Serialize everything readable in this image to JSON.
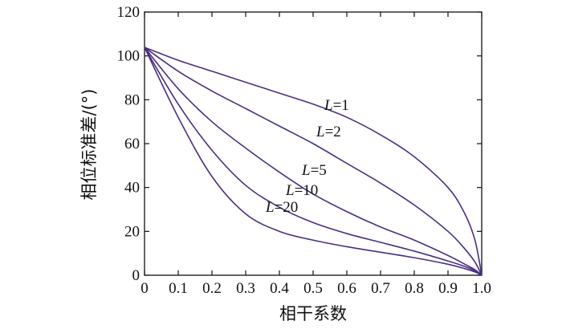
{
  "chart_data": {
    "type": "line",
    "xlabel": "相干系数",
    "ylabel": "相位标准差/(°)",
    "xlim": [
      0,
      1.0
    ],
    "ylim": [
      0,
      120
    ],
    "x_ticks": [
      "0",
      "0.1",
      "0.2",
      "0.3",
      "0.4",
      "0.5",
      "0.6",
      "0.7",
      "0.8",
      "0.9",
      "1.0"
    ],
    "y_ticks": [
      "0",
      "20",
      "40",
      "60",
      "80",
      "100",
      "120"
    ],
    "grid": false,
    "series": [
      {
        "name": "L=1",
        "label_prefix": "L",
        "label_value": "=1",
        "color": "#4b2e83",
        "x": [
          0.0,
          0.1,
          0.2,
          0.3,
          0.4,
          0.5,
          0.6,
          0.7,
          0.8,
          0.9,
          0.95,
          0.98,
          1.0
        ],
        "y": [
          103.9,
          98,
          93,
          88,
          83,
          78,
          72,
          64,
          54,
          40,
          28,
          16,
          0
        ]
      },
      {
        "name": "L=2",
        "label_prefix": "L",
        "label_value": "=2",
        "color": "#4b2e83",
        "x": [
          0.0,
          0.1,
          0.2,
          0.3,
          0.4,
          0.5,
          0.6,
          0.7,
          0.8,
          0.9,
          0.95,
          0.98,
          1.0
        ],
        "y": [
          103.9,
          93,
          84,
          76,
          68,
          60,
          51,
          42,
          32,
          20,
          12,
          6,
          0
        ]
      },
      {
        "name": "L=5",
        "label_prefix": "L",
        "label_value": "=5",
        "color": "#4b2e83",
        "x": [
          0.0,
          0.1,
          0.2,
          0.3,
          0.4,
          0.5,
          0.6,
          0.7,
          0.8,
          0.9,
          0.95,
          0.98,
          1.0
        ],
        "y": [
          103.9,
          85,
          70,
          58,
          47,
          37,
          29,
          22,
          16,
          9,
          5,
          2.5,
          0
        ]
      },
      {
        "name": "L=10",
        "label_prefix": "L",
        "label_value": "=10",
        "color": "#4b2e83",
        "x": [
          0.0,
          0.1,
          0.2,
          0.3,
          0.4,
          0.5,
          0.6,
          0.7,
          0.8,
          0.9,
          0.95,
          0.98,
          1.0
        ],
        "y": [
          103.9,
          78,
          57,
          41,
          31,
          24,
          19,
          15,
          11,
          6.5,
          4,
          2,
          0
        ]
      },
      {
        "name": "L=20",
        "label_prefix": "L",
        "label_value": "=20",
        "color": "#4b2e83",
        "x": [
          0.0,
          0.1,
          0.2,
          0.3,
          0.4,
          0.5,
          0.6,
          0.7,
          0.8,
          0.9,
          0.95,
          0.98,
          1.0
        ],
        "y": [
          103.9,
          72,
          45,
          28,
          20,
          16,
          13,
          10.5,
          8,
          5,
          3,
          1.5,
          0
        ]
      }
    ]
  }
}
